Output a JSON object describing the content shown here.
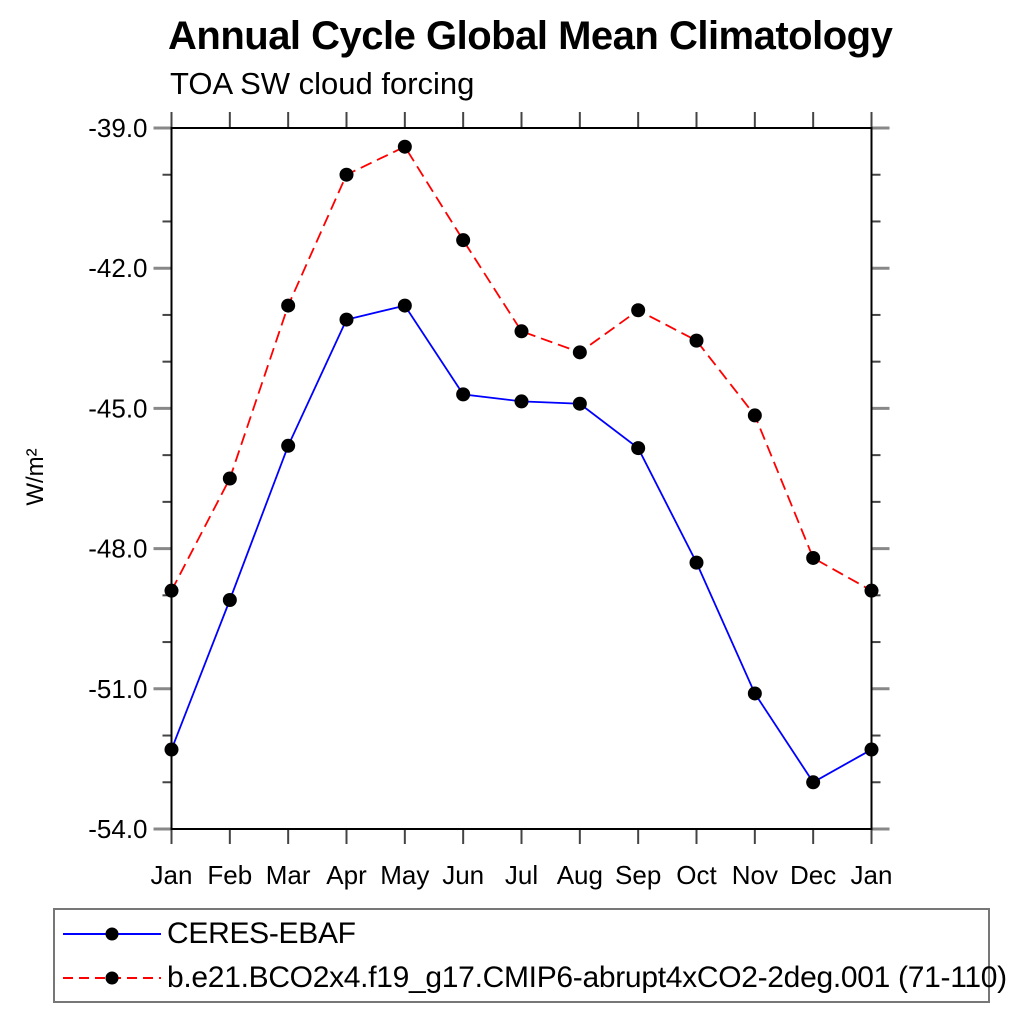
{
  "title": "Annual Cycle Global Mean Climatology",
  "subtitle": "TOA SW cloud forcing",
  "ylabel": "W/m²",
  "chart_data": {
    "type": "line",
    "x_categories": [
      "Jan",
      "Feb",
      "Mar",
      "Apr",
      "May",
      "Jun",
      "Jul",
      "Aug",
      "Sep",
      "Oct",
      "Nov",
      "Dec",
      "Jan"
    ],
    "xlabel": "",
    "ylabel": "W/m²",
    "ylim": [
      -54.0,
      -39.0
    ],
    "ytick_major": [
      -39.0,
      -42.0,
      -45.0,
      -48.0,
      -51.0,
      -54.0
    ],
    "ytick_minor_step": 1.0,
    "grid": false,
    "legend_position": "bottom",
    "marker": "filled-circle",
    "marker_color": "#000000",
    "series": [
      {
        "name": "CERES-EBAF",
        "color": "#0000ff",
        "line_style": "solid",
        "values": [
          -52.3,
          -49.1,
          -45.8,
          -43.1,
          -42.8,
          -44.7,
          -44.85,
          -44.9,
          -45.85,
          -48.3,
          -51.1,
          -53.0,
          -52.3
        ]
      },
      {
        "name": "b.e21.BCO2x4.f19_g17.CMIP6-abrupt4xCO2-2deg.001 (71-110)",
        "color": "#ff0000",
        "line_style": "dashed",
        "values": [
          -48.9,
          -46.5,
          -42.8,
          -40.0,
          -39.4,
          -41.4,
          -43.35,
          -43.8,
          -42.9,
          -43.55,
          -45.15,
          -48.2,
          -48.9
        ]
      }
    ]
  }
}
